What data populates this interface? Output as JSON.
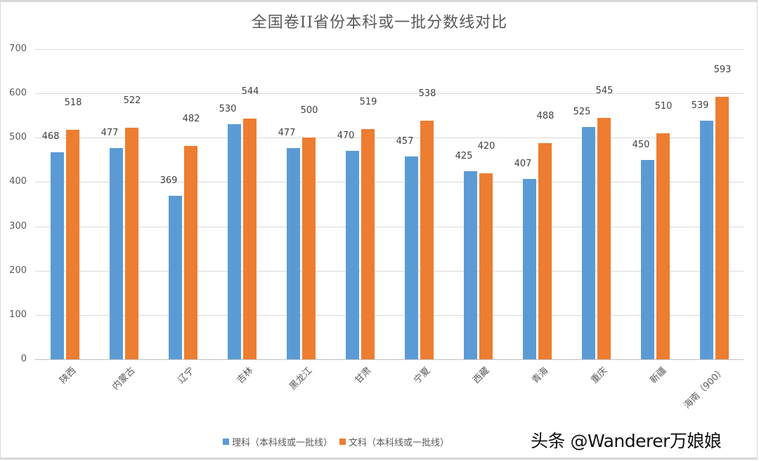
{
  "chart_data": {
    "type": "bar",
    "title": "全国卷II省份本科或一批分数线对比",
    "xlabel": "",
    "ylabel": "",
    "ylim": [
      0,
      700
    ],
    "yticks": [
      0,
      100,
      200,
      300,
      400,
      500,
      600,
      700
    ],
    "grid": true,
    "legend_position": "bottom",
    "categories": [
      "陕西",
      "内蒙古",
      "辽宁",
      "吉林",
      "黑龙江",
      "甘肃",
      "宁夏",
      "西藏",
      "青海",
      "重庆",
      "新疆",
      "海南（900）"
    ],
    "series": [
      {
        "name": "理科（本科线或一批线）",
        "color": "#5b9bd5",
        "values": [
          468,
          477,
          369,
          530,
          477,
          470,
          457,
          425,
          407,
          525,
          450,
          539
        ]
      },
      {
        "name": "文科（本科线或一批线）",
        "color": "#ed7d31",
        "values": [
          518,
          522,
          482,
          544,
          500,
          519,
          538,
          420,
          488,
          545,
          510,
          593
        ]
      }
    ]
  },
  "watermark": "头条 @Wanderer万娘娘"
}
